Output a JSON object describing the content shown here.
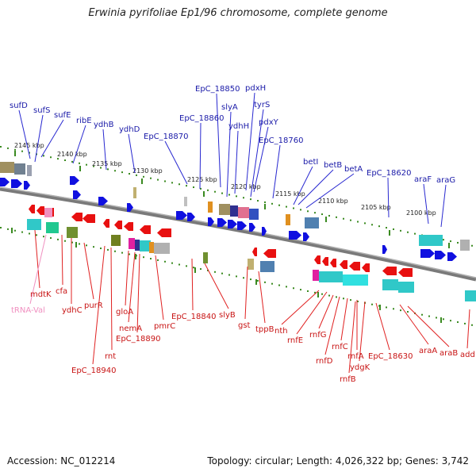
{
  "title": "Erwinia pyrifoliae Ep1/96 chromosome, complete genome",
  "footer": {
    "accession": "Accession: NC_012214",
    "summary": "Topology: circular; Length: 4,026,322 bp; Genes: 3,742"
  },
  "colors": {
    "forward_gene": "#1010e0",
    "reverse_gene": "#e81010",
    "label_top": "#1a1aa8",
    "label_bottom": "#c81414",
    "label_trna": "#f090c0",
    "backbone": "#808080",
    "tick": "#3a8a20"
  },
  "scale_labels": [
    "2145 kbp",
    "2140 kbp",
    "2135 kbp",
    "2130 kbp",
    "2125 kbp",
    "2120 kbp",
    "2115 kbp",
    "2110 kbp",
    "2105 kbp",
    "2100 kbp"
  ],
  "top_labels": [
    "sufD",
    "sufS",
    "sufE",
    "ribE",
    "ydhB",
    "ydhD",
    "EpC_18870",
    "EpC_18860",
    "EpC_18850",
    "slyA",
    "ydhH",
    "pdxH",
    "tyrS",
    "pdxY",
    "EpC_18760",
    "betI",
    "betB",
    "betA",
    "EpC_18620",
    "araF",
    "araG"
  ],
  "bottom_labels": [
    "mdtK",
    "tRNA-Val",
    "cfa",
    "ydhC",
    "purR",
    "EpC_18940",
    "rnt",
    "gloA",
    "nemA",
    "EpC_18890",
    "pmrC",
    "EpC_18840",
    "slyB",
    "gst",
    "tppB",
    "nth",
    "rnfE",
    "rnfG",
    "rnfD",
    "rnfC",
    "rnfA",
    "rnfB",
    "ydgK",
    "EpC_18630",
    "araA",
    "araB",
    "add"
  ]
}
